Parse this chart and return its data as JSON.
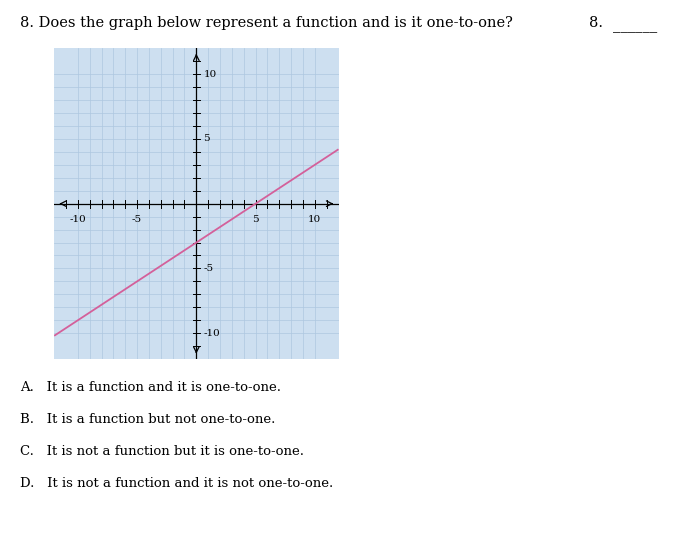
{
  "title": "8. Does the graph below represent a function and is it one-to-one?",
  "question_number": "8.",
  "line_slope": 0.6,
  "line_intercept": -3,
  "line_color": "#d4609a",
  "line_width": 1.3,
  "xlim": [
    -12,
    12
  ],
  "ylim": [
    -12,
    12
  ],
  "xticks": [
    -10,
    -5,
    5,
    10
  ],
  "yticks": [
    -10,
    -5,
    5,
    10
  ],
  "grid_color": "#aec8e0",
  "bg_color": "#cddff0",
  "choices": [
    "A.   It is a function and it is one-to-one.",
    "B.   It is a function but not one-to-one.",
    "C.   It is not a function but it is one-to-one.",
    "D.   It is not a function and it is not one-to-one."
  ],
  "fig_width": 6.77,
  "fig_height": 5.36,
  "fig_dpi": 100
}
